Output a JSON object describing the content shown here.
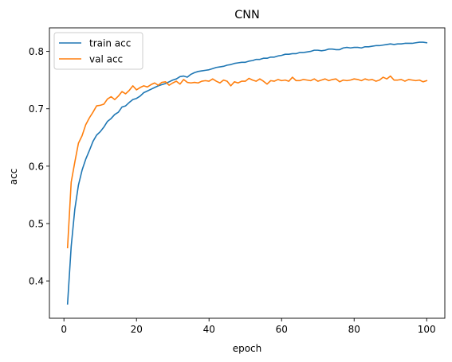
{
  "chart_data": {
    "type": "line",
    "title": "CNN",
    "xlabel": "epoch",
    "ylabel": "acc",
    "xlim": [
      -4,
      105
    ],
    "ylim": [
      0.335,
      0.841
    ],
    "xticks": [
      0,
      20,
      40,
      60,
      80,
      100
    ],
    "yticks": [
      0.4,
      0.5,
      0.6,
      0.7,
      0.8
    ],
    "xtick_labels": [
      "0",
      "20",
      "40",
      "60",
      "80",
      "100"
    ],
    "ytick_labels": [
      "0.4",
      "0.5",
      "0.6",
      "0.7",
      "0.8"
    ],
    "grid": false,
    "legend_position": "upper-left",
    "x": [
      1,
      2,
      3,
      4,
      5,
      6,
      7,
      8,
      9,
      10,
      11,
      12,
      13,
      14,
      15,
      16,
      17,
      18,
      19,
      20,
      21,
      22,
      23,
      24,
      25,
      26,
      27,
      28,
      29,
      30,
      31,
      32,
      33,
      34,
      35,
      36,
      37,
      38,
      39,
      40,
      41,
      42,
      43,
      44,
      45,
      46,
      47,
      48,
      49,
      50,
      51,
      52,
      53,
      54,
      55,
      56,
      57,
      58,
      59,
      60,
      61,
      62,
      63,
      64,
      65,
      66,
      67,
      68,
      69,
      70,
      71,
      72,
      73,
      74,
      75,
      76,
      77,
      78,
      79,
      80,
      81,
      82,
      83,
      84,
      85,
      86,
      87,
      88,
      89,
      90,
      91,
      92,
      93,
      94,
      95,
      96,
      97,
      98,
      99,
      100
    ],
    "series": [
      {
        "name": "train acc",
        "color": "#1f77b4",
        "values": [
          0.36,
          0.46,
          0.525,
          0.567,
          0.593,
          0.612,
          0.627,
          0.643,
          0.654,
          0.66,
          0.668,
          0.678,
          0.683,
          0.69,
          0.694,
          0.703,
          0.705,
          0.711,
          0.716,
          0.718,
          0.722,
          0.728,
          0.731,
          0.734,
          0.737,
          0.74,
          0.742,
          0.744,
          0.747,
          0.75,
          0.752,
          0.756,
          0.757,
          0.755,
          0.76,
          0.763,
          0.765,
          0.766,
          0.767,
          0.768,
          0.77,
          0.772,
          0.773,
          0.774,
          0.776,
          0.777,
          0.779,
          0.78,
          0.781,
          0.781,
          0.783,
          0.784,
          0.786,
          0.786,
          0.788,
          0.788,
          0.79,
          0.79,
          0.792,
          0.793,
          0.795,
          0.795,
          0.796,
          0.796,
          0.798,
          0.798,
          0.799,
          0.8,
          0.802,
          0.802,
          0.801,
          0.802,
          0.804,
          0.804,
          0.803,
          0.803,
          0.806,
          0.807,
          0.806,
          0.807,
          0.807,
          0.806,
          0.808,
          0.808,
          0.809,
          0.81,
          0.81,
          0.811,
          0.812,
          0.813,
          0.812,
          0.813,
          0.813,
          0.814,
          0.814,
          0.814,
          0.815,
          0.816,
          0.816,
          0.815
        ]
      },
      {
        "name": "val acc",
        "color": "#ff7f0e",
        "values": [
          0.458,
          0.572,
          0.607,
          0.64,
          0.653,
          0.672,
          0.684,
          0.694,
          0.705,
          0.706,
          0.708,
          0.717,
          0.721,
          0.716,
          0.722,
          0.73,
          0.726,
          0.732,
          0.74,
          0.733,
          0.737,
          0.74,
          0.738,
          0.742,
          0.745,
          0.741,
          0.746,
          0.747,
          0.741,
          0.745,
          0.748,
          0.743,
          0.751,
          0.746,
          0.745,
          0.746,
          0.745,
          0.748,
          0.749,
          0.748,
          0.752,
          0.748,
          0.745,
          0.75,
          0.748,
          0.74,
          0.747,
          0.745,
          0.748,
          0.748,
          0.753,
          0.75,
          0.748,
          0.752,
          0.748,
          0.743,
          0.749,
          0.748,
          0.751,
          0.749,
          0.75,
          0.748,
          0.755,
          0.749,
          0.749,
          0.751,
          0.75,
          0.749,
          0.752,
          0.748,
          0.75,
          0.752,
          0.749,
          0.751,
          0.752,
          0.747,
          0.75,
          0.749,
          0.75,
          0.752,
          0.751,
          0.749,
          0.752,
          0.75,
          0.751,
          0.748,
          0.75,
          0.755,
          0.752,
          0.757,
          0.75,
          0.75,
          0.751,
          0.748,
          0.751,
          0.75,
          0.749,
          0.75,
          0.747,
          0.749
        ]
      }
    ]
  }
}
